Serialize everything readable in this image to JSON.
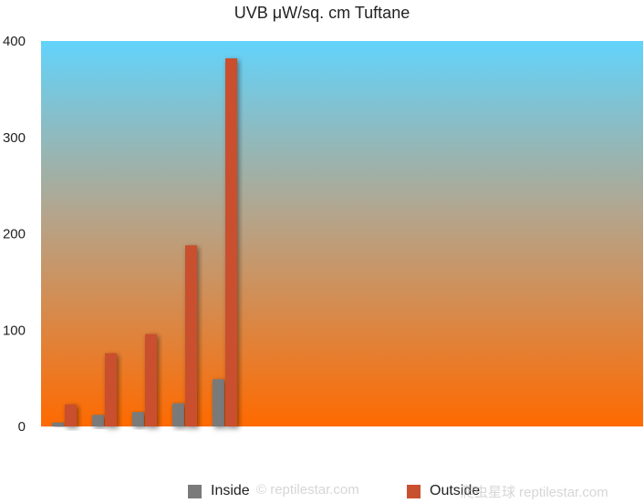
{
  "chart_data": {
    "type": "bar",
    "title": "UVB μW/sq. cm Tuftane",
    "xlabel": "",
    "ylabel": "",
    "categories": [
      "",
      "",
      "",
      "",
      ""
    ],
    "series": [
      {
        "name": "Inside",
        "values": [
          4,
          12,
          15,
          24,
          49
        ],
        "color": "#7a7a7a"
      },
      {
        "name": "Outside",
        "values": [
          23,
          76,
          96,
          188,
          382
        ],
        "color": "#c9502f"
      }
    ],
    "ylim": [
      0,
      400
    ],
    "yticks": [
      0,
      100,
      200,
      300,
      400
    ],
    "category_slots": 15,
    "grid": false,
    "legend_position": "bottom",
    "background_gradient": [
      "#62d3fb",
      "#ff6a00"
    ]
  },
  "watermarks": [
    "© reptilestar.com",
    "爬虫星球 reptilestar.com"
  ]
}
